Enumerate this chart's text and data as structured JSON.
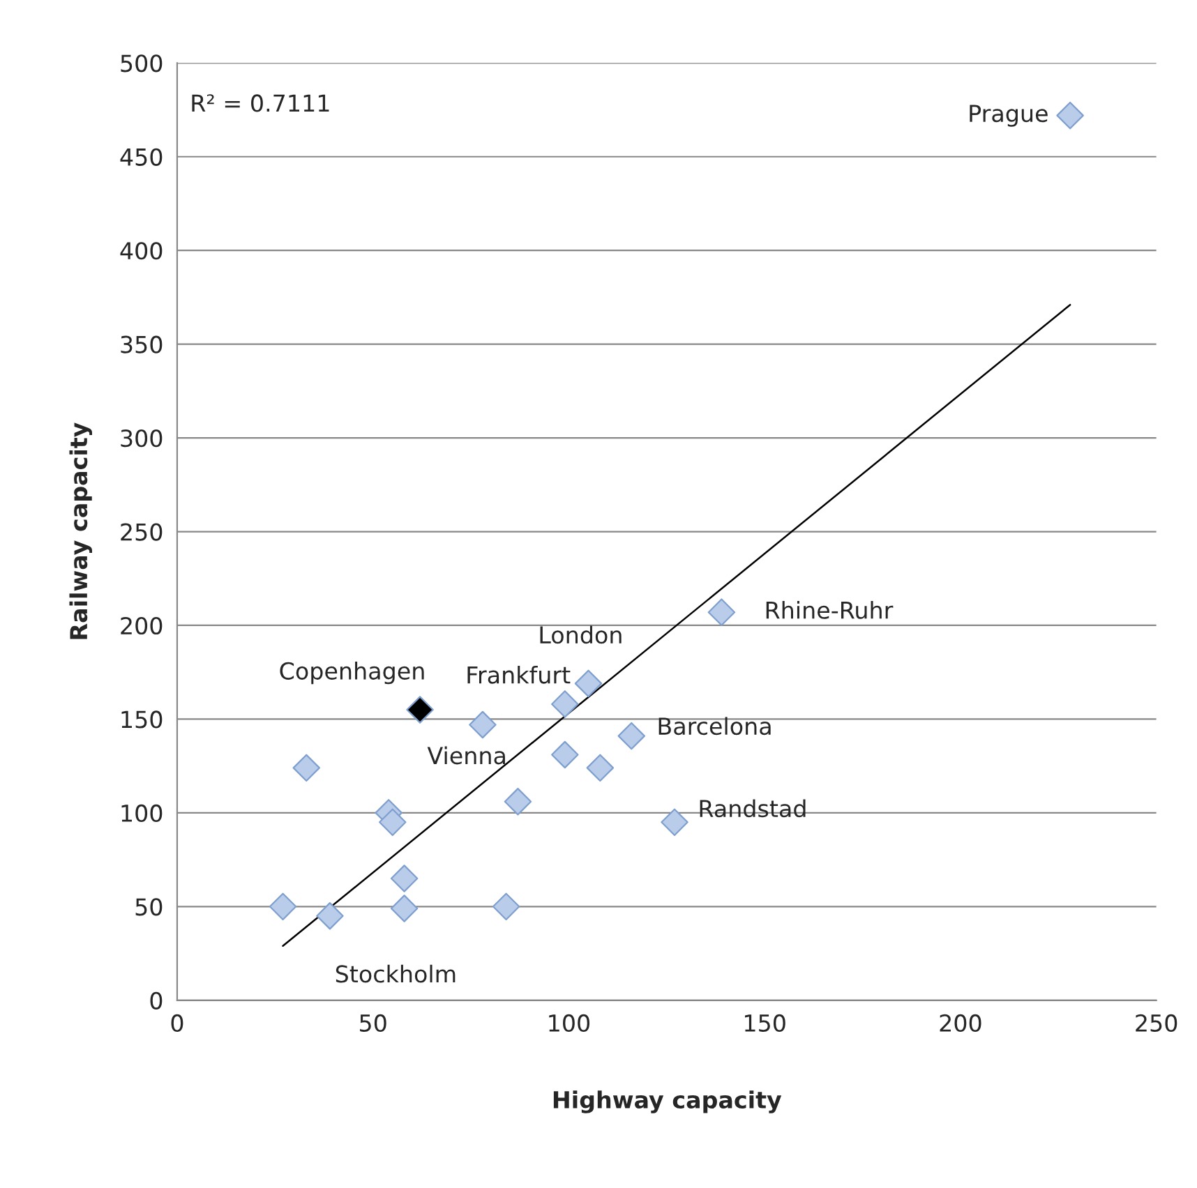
{
  "chart_data": {
    "type": "scatter",
    "xlabel": "Highway capacity",
    "ylabel": "Railway capacity",
    "xlim": [
      0,
      250
    ],
    "xticks": [
      0,
      50,
      100,
      150,
      200,
      250
    ],
    "ylim": [
      0,
      500
    ],
    "yticks": [
      0,
      50,
      100,
      150,
      200,
      250,
      300,
      350,
      400,
      450,
      500
    ],
    "grid": "y",
    "legend": false,
    "series": [
      {
        "marker": "diamond",
        "x": [
          228,
          139,
          105,
          99,
          62,
          78,
          116,
          99,
          108,
          127,
          33,
          54,
          55,
          87,
          58,
          27,
          39,
          58,
          84
        ],
        "values": [
          472,
          207,
          169,
          158,
          155,
          147,
          141,
          131,
          124,
          95,
          124,
          100,
          95,
          106,
          65,
          50,
          45,
          49,
          50
        ],
        "colors": [
          "#b9cdeb",
          "#b9cdeb",
          "#b9cdeb",
          "#b9cdeb",
          "#000000",
          "#b9cdeb",
          "#b9cdeb",
          "#b9cdeb",
          "#b9cdeb",
          "#b9cdeb",
          "#b9cdeb",
          "#b9cdeb",
          "#b9cdeb",
          "#b9cdeb",
          "#b9cdeb",
          "#b9cdeb",
          "#b9cdeb",
          "#b9cdeb",
          "#b9cdeb"
        ]
      },
      {
        "type": "line",
        "color": "#000000",
        "x": [
          27,
          228
        ],
        "values": [
          29,
          371
        ]
      }
    ],
    "annotations": [
      "R² = 0.7111",
      {
        "text": "Prague",
        "x": 228,
        "y": 472
      },
      {
        "text": "Rhine-Ruhr",
        "x": 139,
        "y": 207
      },
      {
        "text": "London",
        "x": 105,
        "y": 169
      },
      {
        "text": "Frankfurt",
        "x": 99,
        "y": 158
      },
      {
        "text": "Copenhagen",
        "x": 62,
        "y": 155
      },
      {
        "text": "Vienna",
        "x": 78,
        "y": 147
      },
      {
        "text": "Barcelona",
        "x": 116,
        "y": 141
      },
      {
        "text": "Randstad",
        "x": 127,
        "y": 95
      },
      {
        "text": "Stockholm",
        "x": 39,
        "y": 45
      }
    ]
  }
}
